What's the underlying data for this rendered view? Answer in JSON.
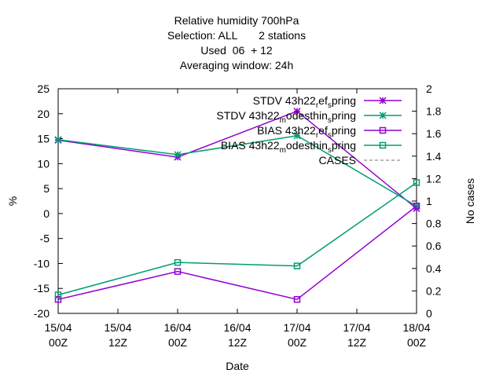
{
  "chart_data": {
    "type": "line",
    "title_lines": [
      "Relative humidity 700hPa",
      "Selection: ALL       2 stations",
      "Used  06  + 12",
      "Averaging window: 24h"
    ],
    "xlabel": "Date",
    "ylabel": "%",
    "y2label": "No cases",
    "x_ticks": [
      [
        "15/04",
        "00Z"
      ],
      [
        "15/04",
        "12Z"
      ],
      [
        "16/04",
        "00Z"
      ],
      [
        "16/04",
        "12Z"
      ],
      [
        "17/04",
        "00Z"
      ],
      [
        "17/04",
        "12Z"
      ],
      [
        "18/04",
        "00Z"
      ]
    ],
    "x_range_hours": [
      0,
      72
    ],
    "ylim": [
      -20,
      25
    ],
    "y_ticks": [
      -20,
      -15,
      -10,
      -5,
      0,
      5,
      10,
      15,
      20,
      25
    ],
    "y2lim": [
      0,
      2
    ],
    "y2_ticks": [
      0,
      0.2,
      0.4,
      0.6,
      0.8,
      1,
      1.2,
      1.4,
      1.6,
      1.8,
      2
    ],
    "grid": false,
    "legend_position": "top-right",
    "series": [
      {
        "legend": [
          "STDV 43h22",
          "r",
          "ef",
          "s",
          "pring"
        ],
        "stat": "STDV",
        "color": "#9400d3",
        "marker": "star",
        "x_hours": [
          0,
          24,
          48,
          72
        ],
        "values": [
          14.7,
          11.3,
          20.5,
          1.0
        ]
      },
      {
        "legend": [
          "STDV 43h22",
          "m",
          "odesthin",
          "s",
          "pring"
        ],
        "stat": "STDV",
        "color": "#009e73",
        "marker": "star",
        "x_hours": [
          0,
          24,
          48,
          72
        ],
        "values": [
          14.8,
          11.8,
          15.6,
          1.5
        ]
      },
      {
        "legend": [
          "BIAS 43h22",
          "r",
          "ef",
          "s",
          "pring"
        ],
        "stat": "BIAS",
        "color": "#9400d3",
        "marker": "square",
        "x_hours": [
          0,
          24,
          48,
          72
        ],
        "values": [
          -17.2,
          -11.6,
          -17.2,
          1.5
        ]
      },
      {
        "legend": [
          "BIAS 43h22",
          "m",
          "odesthin",
          "s",
          "pring"
        ],
        "stat": "BIAS",
        "color": "#009e73",
        "marker": "square",
        "x_hours": [
          0,
          24,
          48,
          72
        ],
        "values": [
          -16.3,
          -9.8,
          -10.5,
          6.2
        ]
      },
      {
        "legend": [
          "CASES"
        ],
        "stat": "CASES",
        "color": "#a0a0a0",
        "marker": "none",
        "dashed": true,
        "x_hours": [],
        "values": []
      }
    ]
  }
}
